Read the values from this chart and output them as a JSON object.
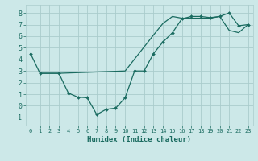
{
  "xlabel": "Humidex (Indice chaleur)",
  "bg_color": "#cce8e8",
  "grid_color": "#aacccc",
  "line_color": "#1a6b60",
  "xlim": [
    -0.5,
    23.5
  ],
  "ylim": [
    -1.7,
    8.7
  ],
  "xticks": [
    0,
    1,
    2,
    3,
    4,
    5,
    6,
    7,
    8,
    9,
    10,
    11,
    12,
    13,
    14,
    15,
    16,
    17,
    18,
    19,
    20,
    21,
    22,
    23
  ],
  "yticks": [
    -1,
    0,
    1,
    2,
    3,
    4,
    5,
    6,
    7,
    8
  ],
  "line1_x": [
    0,
    1,
    3,
    4,
    5,
    6,
    7,
    8,
    9,
    10,
    11,
    12,
    13,
    14,
    15,
    16,
    17,
    18,
    19,
    20,
    21,
    22,
    23
  ],
  "line1_y": [
    4.5,
    2.8,
    2.8,
    1.1,
    0.75,
    0.7,
    -0.75,
    -0.3,
    -0.2,
    0.7,
    3.0,
    3.0,
    4.5,
    5.5,
    6.3,
    7.5,
    7.7,
    7.7,
    7.6,
    7.7,
    8.0,
    6.9,
    7.0
  ],
  "line2_x": [
    1,
    3,
    10,
    13,
    14,
    15,
    16,
    17,
    18,
    19,
    20,
    21,
    22,
    23
  ],
  "line2_y": [
    2.8,
    2.8,
    3.0,
    6.1,
    7.1,
    7.7,
    7.55,
    7.55,
    7.55,
    7.55,
    7.7,
    6.5,
    6.3,
    7.0
  ],
  "xlabel_fontsize": 6.5,
  "tick_fontsize_x": 5.0,
  "tick_fontsize_y": 6.0
}
